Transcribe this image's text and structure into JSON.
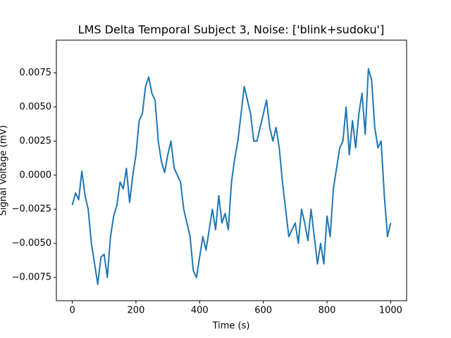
{
  "chart_data": {
    "type": "line",
    "title": "LMS Delta Temporal Subject 3, Noise: ['blink+sudoku']",
    "xlabel": "Time (s)",
    "ylabel": "Signal Voltage (mV)",
    "xlim": [
      -50,
      1050
    ],
    "ylim": [
      -0.0092,
      0.0099
    ],
    "xticks": [
      0,
      200,
      400,
      600,
      800,
      1000
    ],
    "yticks": [
      {
        "value": -0.0075,
        "label": "−0.0075"
      },
      {
        "value": -0.005,
        "label": "−0.0050"
      },
      {
        "value": -0.0025,
        "label": "−0.0025"
      },
      {
        "value": 0,
        "label": "0.0000"
      },
      {
        "value": 0.0025,
        "label": "0.0025"
      },
      {
        "value": 0.005,
        "label": "0.0050"
      },
      {
        "value": 0.0075,
        "label": "0.0075"
      }
    ],
    "x": [
      0,
      10,
      20,
      30,
      40,
      50,
      60,
      70,
      80,
      90,
      100,
      110,
      120,
      130,
      140,
      150,
      160,
      170,
      180,
      190,
      200,
      210,
      220,
      230,
      240,
      250,
      260,
      270,
      280,
      290,
      300,
      310,
      320,
      330,
      340,
      350,
      360,
      370,
      380,
      390,
      400,
      410,
      420,
      430,
      440,
      450,
      460,
      470,
      480,
      490,
      500,
      510,
      520,
      530,
      540,
      550,
      560,
      570,
      580,
      590,
      600,
      610,
      620,
      630,
      640,
      650,
      660,
      670,
      680,
      690,
      700,
      710,
      720,
      730,
      740,
      750,
      760,
      770,
      780,
      790,
      800,
      810,
      820,
      830,
      840,
      850,
      860,
      870,
      880,
      890,
      900,
      910,
      920,
      930,
      940,
      950,
      960,
      970,
      980,
      990,
      1000
    ],
    "series": [
      {
        "name": "signal",
        "color": "#1f77b4",
        "values": [
          -0.0022,
          -0.0013,
          -0.0018,
          0.0003,
          -0.0015,
          -0.0025,
          -0.005,
          -0.0065,
          -0.008,
          -0.006,
          -0.0058,
          -0.0075,
          -0.0045,
          -0.003,
          -0.0022,
          -0.0005,
          -0.001,
          0.0005,
          -0.002,
          0.0,
          0.0015,
          0.004,
          0.0045,
          0.0065,
          0.0072,
          0.006,
          0.0055,
          0.0025,
          0.001,
          0.0002,
          0.0015,
          0.0025,
          0.0005,
          0.0,
          -0.0005,
          -0.0025,
          -0.0035,
          -0.0045,
          -0.007,
          -0.0075,
          -0.006,
          -0.0045,
          -0.0055,
          -0.004,
          -0.0025,
          -0.004,
          -0.0015,
          -0.0035,
          -0.0028,
          -0.004,
          -0.0005,
          0.0012,
          0.0025,
          0.0045,
          0.0065,
          0.0055,
          0.0045,
          0.0025,
          0.0025,
          0.0035,
          0.0045,
          0.0055,
          0.0035,
          0.0025,
          0.0035,
          0.002,
          -0.0005,
          -0.0025,
          -0.0045,
          -0.004,
          -0.0035,
          -0.005,
          -0.0025,
          -0.0035,
          -0.0048,
          -0.0025,
          -0.0045,
          -0.0065,
          -0.005,
          -0.0065,
          -0.003,
          -0.0045,
          -0.001,
          0.0005,
          0.002,
          0.0025,
          0.005,
          0.0015,
          0.004,
          0.002,
          0.0045,
          0.006,
          0.003,
          0.0078,
          0.007,
          0.0035,
          0.002,
          0.0025,
          -0.0015,
          -0.0045,
          -0.0035
        ]
      }
    ]
  }
}
